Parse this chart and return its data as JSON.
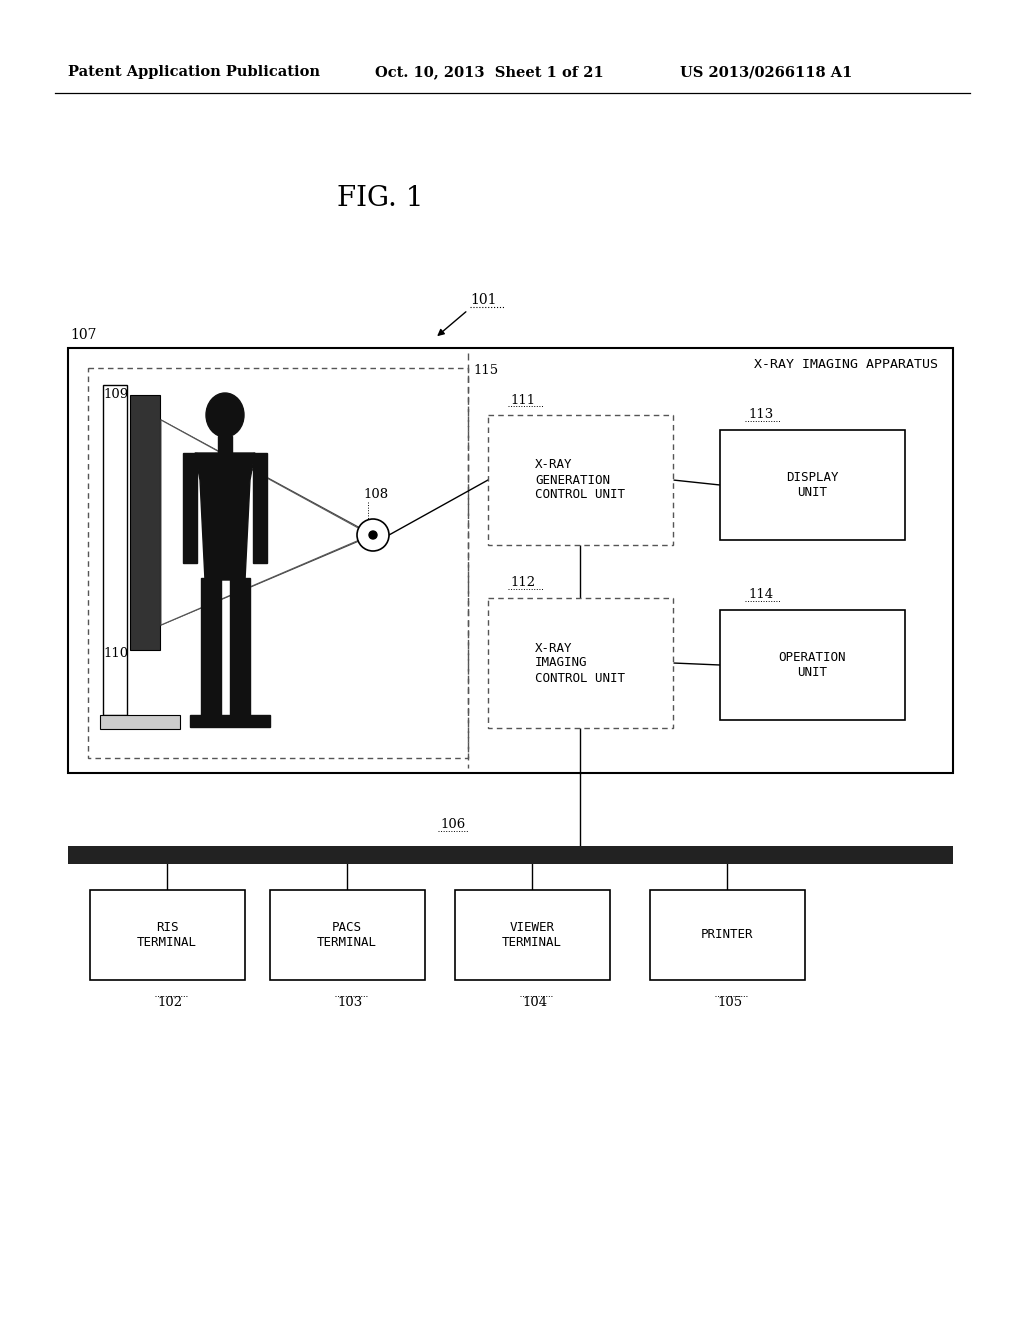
{
  "bg_color": "#ffffff",
  "header_left": "Patent Application Publication",
  "header_mid": "Oct. 10, 2013  Sheet 1 of 21",
  "header_right": "US 2013/0266118 A1",
  "fig_title": "FIG. 1",
  "label_101": "101",
  "label_102": "102",
  "label_103": "103",
  "label_104": "104",
  "label_105": "105",
  "label_106": "106",
  "label_107": "107",
  "label_108": "108",
  "label_109": "109",
  "label_110": "110",
  "label_111": "111",
  "label_112": "112",
  "label_113": "113",
  "label_114": "114",
  "label_115": "115",
  "text_xray_apparatus": "X-RAY IMAGING APPARATUS",
  "text_111": "X-RAY\nGENERATION\nCONTROL UNIT",
  "text_112": "X-RAY\nIMAGING\nCONTROL UNIT",
  "text_113": "DISPLAY\nUNIT",
  "text_114": "OPERATION\nUNIT",
  "text_102": "RIS\nTERMINAL",
  "text_103": "PACS\nTERMINAL",
  "text_104": "VIEWER\nTERMINAL",
  "text_105": "PRINTER",
  "font_mono": "DejaVu Sans Mono",
  "font_serif": "DejaVu Serif"
}
